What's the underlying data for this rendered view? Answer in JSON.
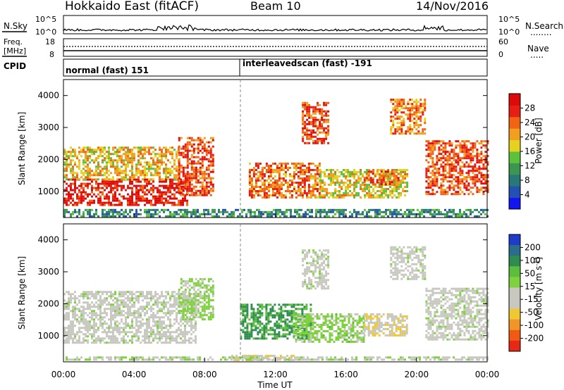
{
  "header": {
    "station": "Hokkaido East (fitACF)",
    "beam": "Beam 10",
    "date": "14/Nov/2016"
  },
  "left_labels": {
    "nsky": "N.Sky",
    "freq_line1": "Freq.",
    "freq_line2": "[MHz]",
    "cpid": "CPID"
  },
  "right_labels": {
    "nsearch": "N.Search",
    "nsearch_dots": "........",
    "nave": "Nave",
    "nave_dots": "....."
  },
  "noise_panel": {
    "left_ticks": [
      "10^5",
      "10^0"
    ],
    "right_ticks": [
      "10^5",
      "10^0"
    ]
  },
  "freq_panel": {
    "left_ticks": [
      "18",
      "8"
    ],
    "right_ticks": [
      "60",
      "0"
    ]
  },
  "cpid_panel": {
    "segments": [
      {
        "label": "normal (fast) 151",
        "start_hour": 0
      },
      {
        "label": "interleavedscan (fast) -191",
        "start_hour": 10
      }
    ]
  },
  "colors": {
    "power_scale": [
      "#1414f0",
      "#2450b4",
      "#287878",
      "#3c9650",
      "#5cc23c",
      "#e6d21e",
      "#f0a01e",
      "#f06414",
      "#e61e14",
      "#dc0a0a"
    ],
    "velocity_scale": [
      "#1e3cc8",
      "#2a6e8c",
      "#2e8c50",
      "#5cbe3c",
      "#7ed23c",
      "#c8c8c0",
      "#c8c8c0",
      "#f0c832",
      "#f09628",
      "#f05a14",
      "#e62814"
    ]
  },
  "chart_data": [
    {
      "type": "heatmap",
      "name": "power",
      "ylabel": "Slant Range [km]",
      "xlabel": "Time UT",
      "xlim_hours": [
        0,
        24
      ],
      "ylim_km": [
        180,
        4500
      ],
      "yticks": [
        "1000",
        "2000",
        "3000",
        "4000"
      ],
      "xticks": [
        "00:00",
        "04:00",
        "08:00",
        "12:00",
        "16:00",
        "20:00",
        "00:00"
      ],
      "colorbar": {
        "label": "Power [dB]",
        "ticks": [
          "4",
          "8",
          "12",
          "16",
          "20",
          "24",
          "28"
        ],
        "range": [
          0,
          30
        ]
      },
      "regions": [
        {
          "t0": 0.0,
          "t1": 7.0,
          "r0": 600,
          "r1": 1400,
          "value": 27
        },
        {
          "t0": 0.0,
          "t1": 6.5,
          "r0": 1400,
          "r1": 2400,
          "value": 18
        },
        {
          "t0": 6.5,
          "t1": 8.5,
          "r0": 900,
          "r1": 2700,
          "value": 24
        },
        {
          "t0": 10.5,
          "t1": 14.5,
          "r0": 800,
          "r1": 1900,
          "value": 22
        },
        {
          "t0": 13.5,
          "t1": 15.0,
          "r0": 2500,
          "r1": 3800,
          "value": 24
        },
        {
          "t0": 14.5,
          "t1": 19.5,
          "r0": 800,
          "r1": 1700,
          "value": 17
        },
        {
          "t0": 17.0,
          "t1": 19.0,
          "r0": 1200,
          "r1": 1650,
          "value": 24
        },
        {
          "t0": 18.5,
          "t1": 20.5,
          "r0": 2800,
          "r1": 3900,
          "value": 21
        },
        {
          "t0": 20.5,
          "t1": 24.0,
          "r0": 900,
          "r1": 2600,
          "value": 24
        },
        {
          "t0": 0.0,
          "t1": 24.0,
          "r0": 250,
          "r1": 450,
          "value": 9
        }
      ]
    },
    {
      "type": "heatmap",
      "name": "velocity",
      "ylabel": "Slant Range [km]",
      "xlabel": "Time UT",
      "xlim_hours": [
        0,
        24
      ],
      "ylim_km": [
        180,
        4500
      ],
      "yticks": [
        "1000",
        "2000",
        "3000",
        "4000"
      ],
      "xticks": [
        "00:00",
        "04:00",
        "08:00",
        "12:00",
        "16:00",
        "20:00",
        "00:00"
      ],
      "colorbar": {
        "label": "Velocity [m s^-1]",
        "ticks": [
          "200",
          "100",
          "50",
          "15",
          "-15",
          "-50",
          "-100",
          "-200"
        ],
        "range": [
          250,
          -250
        ]
      },
      "regions": [
        {
          "t0": 0.0,
          "t1": 7.5,
          "r0": 800,
          "r1": 2400,
          "value": 0
        },
        {
          "t0": 6.5,
          "t1": 8.5,
          "r0": 1500,
          "r1": 2800,
          "value": 30
        },
        {
          "t0": 10.0,
          "t1": 14.0,
          "r0": 900,
          "r1": 2000,
          "value": 120
        },
        {
          "t0": 13.0,
          "t1": 17.0,
          "r0": 800,
          "r1": 1700,
          "value": 40
        },
        {
          "t0": 13.5,
          "t1": 15.0,
          "r0": 2500,
          "r1": 3700,
          "value": 0
        },
        {
          "t0": 17.0,
          "t1": 19.5,
          "r0": 1000,
          "r1": 1700,
          "value": -60
        },
        {
          "t0": 18.5,
          "t1": 20.5,
          "r0": 2800,
          "r1": 3800,
          "value": 0
        },
        {
          "t0": 20.5,
          "t1": 24.0,
          "r0": 900,
          "r1": 2500,
          "value": 0
        },
        {
          "t0": 9.5,
          "t1": 13.0,
          "r0": 250,
          "r1": 400,
          "value": -60
        },
        {
          "t0": 0.0,
          "t1": 24.0,
          "r0": 250,
          "r1": 350,
          "value": 10
        }
      ]
    }
  ]
}
